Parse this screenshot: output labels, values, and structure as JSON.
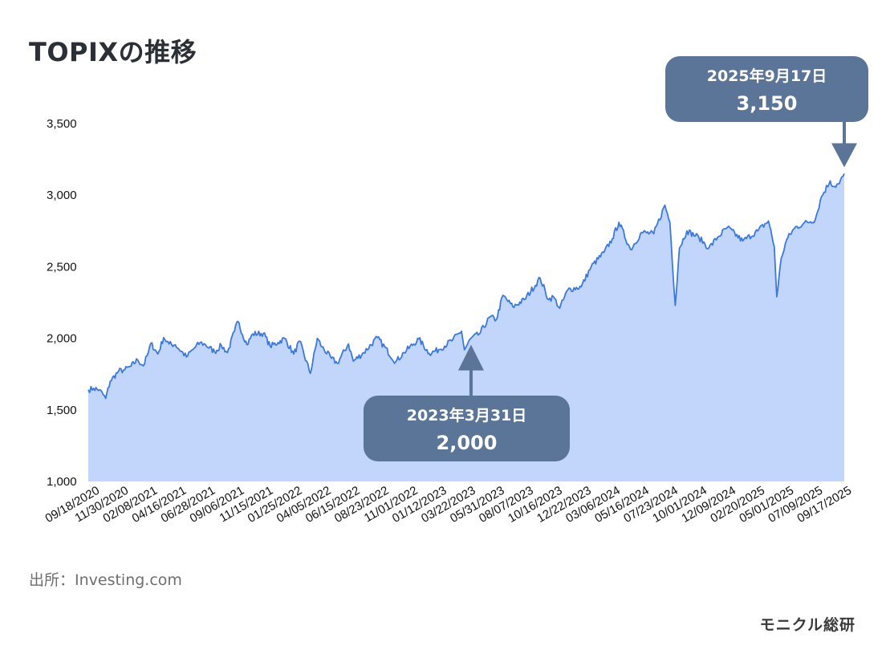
{
  "title": "TOPIXの推移",
  "source": "出所：Investing.com",
  "brand": "モニクル総研",
  "colors": {
    "line": "#3b78e0",
    "area": "#c2d6fb",
    "callout": "#5a7597"
  },
  "chart_data": {
    "type": "area",
    "title": "TOPIXの推移",
    "xlabel": "",
    "ylabel": "",
    "ylim": [
      1000,
      3500
    ],
    "yticks": [
      1000,
      1500,
      2000,
      2500,
      3000,
      3500
    ],
    "ytick_labels": [
      "1,000",
      "1,500",
      "2,000",
      "2,500",
      "3,000",
      "3,500"
    ],
    "xlim": [
      "2020-09-18",
      "2025-09-17"
    ],
    "xtick_labels": [
      "09/18/2020",
      "11/30/2020",
      "02/08/2021",
      "04/16/2021",
      "06/28/2021",
      "09/06/2021",
      "11/15/2021",
      "01/25/2022",
      "04/05/2022",
      "06/15/2022",
      "08/23/2022",
      "11/01/2022",
      "01/12/2023",
      "03/22/2023",
      "05/31/2023",
      "08/07/2023",
      "10/16/2023",
      "12/22/2023",
      "03/06/2024",
      "05/16/2024",
      "07/23/2024",
      "10/01/2024",
      "12/09/2024",
      "02/20/2025",
      "05/01/2025",
      "07/09/2025",
      "09/17/2025"
    ],
    "grid": false,
    "legend": "none",
    "series": [
      {
        "points": [
          [
            "2020-09-18",
            1640
          ],
          [
            "2020-10-01",
            1650
          ],
          [
            "2020-10-15",
            1640
          ],
          [
            "2020-10-30",
            1580
          ],
          [
            "2020-11-10",
            1700
          ],
          [
            "2020-11-30",
            1770
          ],
          [
            "2020-12-15",
            1780
          ],
          [
            "2020-12-30",
            1805
          ],
          [
            "2021-01-15",
            1850
          ],
          [
            "2021-01-29",
            1808
          ],
          [
            "2021-02-10",
            1900
          ],
          [
            "2021-02-16",
            1965
          ],
          [
            "2021-03-05",
            1890
          ],
          [
            "2021-03-19",
            2005
          ],
          [
            "2021-04-01",
            1960
          ],
          [
            "2021-04-16",
            1955
          ],
          [
            "2021-05-13",
            1870
          ],
          [
            "2021-05-28",
            1920
          ],
          [
            "2021-06-15",
            1970
          ],
          [
            "2021-06-28",
            1955
          ],
          [
            "2021-07-20",
            1905
          ],
          [
            "2021-08-05",
            1950
          ],
          [
            "2021-08-20",
            1900
          ],
          [
            "2021-09-06",
            2050
          ],
          [
            "2021-09-14",
            2118
          ],
          [
            "2021-10-06",
            1955
          ],
          [
            "2021-10-20",
            2030
          ],
          [
            "2021-11-15",
            2035
          ],
          [
            "2021-12-01",
            1945
          ],
          [
            "2021-12-20",
            1970
          ],
          [
            "2022-01-05",
            2000
          ],
          [
            "2022-01-27",
            1890
          ],
          [
            "2022-02-10",
            1980
          ],
          [
            "2022-03-08",
            1755
          ],
          [
            "2022-03-25",
            2000
          ],
          [
            "2022-04-05",
            1940
          ],
          [
            "2022-04-28",
            1860
          ],
          [
            "2022-05-12",
            1825
          ],
          [
            "2022-06-08",
            1960
          ],
          [
            "2022-06-20",
            1840
          ],
          [
            "2022-07-15",
            1900
          ],
          [
            "2022-08-17",
            2005
          ],
          [
            "2022-09-30",
            1835
          ],
          [
            "2022-10-20",
            1900
          ],
          [
            "2022-11-25",
            1995
          ],
          [
            "2022-12-20",
            1895
          ],
          [
            "2023-01-12",
            1920
          ],
          [
            "2023-02-15",
            1990
          ],
          [
            "2023-03-08",
            2050
          ],
          [
            "2023-03-15",
            1920
          ],
          [
            "2023-03-31",
            2000
          ],
          [
            "2023-04-20",
            2030
          ],
          [
            "2023-05-16",
            2150
          ],
          [
            "2023-05-31",
            2130
          ],
          [
            "2023-06-16",
            2300
          ],
          [
            "2023-07-10",
            2220
          ],
          [
            "2023-08-07",
            2270
          ],
          [
            "2023-09-14",
            2420
          ],
          [
            "2023-10-04",
            2270
          ],
          [
            "2023-10-16",
            2290
          ],
          [
            "2023-10-31",
            2210
          ],
          [
            "2023-11-20",
            2340
          ],
          [
            "2023-12-22",
            2360
          ],
          [
            "2024-01-15",
            2500
          ],
          [
            "2024-02-15",
            2600
          ],
          [
            "2024-03-06",
            2695
          ],
          [
            "2024-03-22",
            2810
          ],
          [
            "2024-04-19",
            2620
          ],
          [
            "2024-05-16",
            2740
          ],
          [
            "2024-06-14",
            2730
          ],
          [
            "2024-07-11",
            2930
          ],
          [
            "2024-07-23",
            2810
          ],
          [
            "2024-08-05",
            2230
          ],
          [
            "2024-08-15",
            2630
          ],
          [
            "2024-09-02",
            2750
          ],
          [
            "2024-10-01",
            2705
          ],
          [
            "2024-10-25",
            2630
          ],
          [
            "2024-11-15",
            2705
          ],
          [
            "2024-12-09",
            2775
          ],
          [
            "2025-01-15",
            2680
          ],
          [
            "2025-02-20",
            2750
          ],
          [
            "2025-03-18",
            2820
          ],
          [
            "2025-04-01",
            2640
          ],
          [
            "2025-04-07",
            2290
          ],
          [
            "2025-04-18",
            2560
          ],
          [
            "2025-05-01",
            2690
          ],
          [
            "2025-05-20",
            2770
          ],
          [
            "2025-06-10",
            2800
          ],
          [
            "2025-07-09",
            2830
          ],
          [
            "2025-07-24",
            2990
          ],
          [
            "2025-08-14",
            3100
          ],
          [
            "2025-08-22",
            3060
          ],
          [
            "2025-09-05",
            3080
          ],
          [
            "2025-09-17",
            3150
          ]
        ]
      }
    ],
    "annotations": [
      {
        "date_label": "2023年3月31日",
        "value_label": "2,000",
        "x": "2023-03-31",
        "y": 2000
      },
      {
        "date_label": "2025年9月17日",
        "value_label": "3,150",
        "x": "2025-09-17",
        "y": 3150
      }
    ]
  }
}
